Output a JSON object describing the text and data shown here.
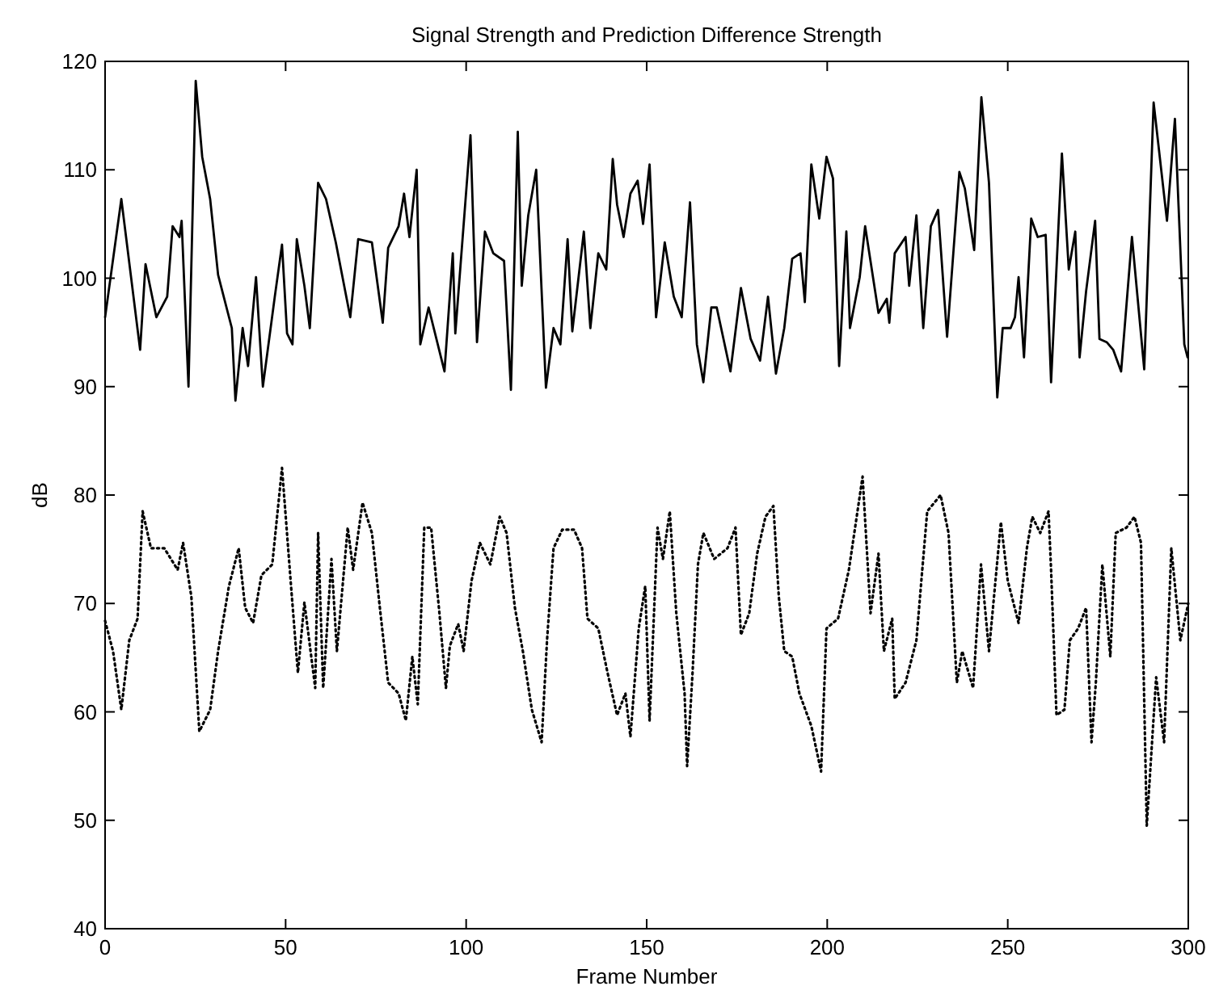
{
  "chart_data": {
    "type": "line",
    "title": "Signal Strength and Prediction Difference Strength",
    "xlabel": "Frame Number",
    "ylabel": "dB",
    "xlim": [
      0,
      300
    ],
    "ylim": [
      40,
      120
    ],
    "xticks": [
      0,
      50,
      100,
      150,
      200,
      250,
      300
    ],
    "yticks": [
      40,
      50,
      60,
      70,
      80,
      90,
      100,
      110,
      120
    ],
    "grid": false,
    "series": [
      {
        "color": "#000000",
        "line_style": "solid",
        "x": [
          0,
          4.5,
          9.7,
          11.2,
          14.2,
          17.2,
          18.7,
          20.6,
          21.2,
          23.1,
          25.1,
          26.9,
          29.1,
          31.3,
          35.1,
          36.1,
          38.1,
          39.6,
          41.8,
          43.7,
          47,
          49,
          50.4,
          51.9,
          53.1,
          55.2,
          56.7,
          59,
          61.2,
          63.9,
          67.9,
          70.1,
          73.9,
          76.9,
          78.4,
          81.3,
          82.8,
          84.3,
          86.3,
          87.3,
          89.6,
          94,
          96.3,
          97,
          101.2,
          103,
          105.2,
          107.5,
          110.5,
          112.4,
          114.3,
          115.4,
          117.2,
          119.4,
          122.1,
          124.2,
          126.1,
          128.1,
          129.4,
          132.6,
          134.4,
          136.6,
          138.8,
          140.6,
          141.8,
          143.6,
          145.5,
          147.5,
          149,
          150.8,
          152.6,
          155,
          157.5,
          159.7,
          162,
          163.9,
          165.7,
          167.9,
          169.4,
          173.2,
          176.1,
          178.8,
          181.4,
          183.6,
          185.8,
          188.1,
          190.3,
          192.6,
          193.8,
          195.6,
          197.8,
          199.8,
          201.6,
          203.3,
          205.3,
          206.3,
          209,
          210.5,
          214.2,
          216.5,
          217.2,
          218.7,
          221.7,
          222.7,
          224.7,
          226.6,
          228.7,
          230.7,
          233.2,
          236.6,
          238.1,
          240.7,
          242.7,
          244.8,
          247.1,
          248.6,
          250.8,
          252,
          253,
          254.5,
          256.5,
          258.3,
          260.5,
          262,
          265,
          266.9,
          268.7,
          269.9,
          271.7,
          274.2,
          275.4,
          277.4,
          279.2,
          281.4,
          284.4,
          287.8,
          290.4,
          294.1,
          296.3,
          298.9,
          299.8
        ],
        "values": [
          96.4,
          107.3,
          93.4,
          101.3,
          96.4,
          98.3,
          104.8,
          103.8,
          105.3,
          90,
          118.2,
          111.2,
          107.3,
          100.3,
          95.4,
          88.7,
          95.4,
          91.9,
          100.1,
          90,
          98.3,
          103.1,
          94.9,
          93.9,
          103.6,
          99.3,
          95.4,
          108.8,
          107.3,
          103.3,
          96.4,
          103.6,
          103.3,
          95.9,
          102.8,
          104.8,
          107.8,
          103.8,
          110,
          93.9,
          97.3,
          91.4,
          102.3,
          94.9,
          113.2,
          94.1,
          104.3,
          102.3,
          101.6,
          89.7,
          113.5,
          99.3,
          105.8,
          110,
          89.9,
          95.4,
          93.9,
          103.6,
          95.1,
          104.3,
          95.4,
          102.3,
          100.8,
          111,
          106.8,
          103.8,
          107.8,
          109,
          105,
          110.5,
          96.4,
          103.3,
          98.3,
          96.4,
          107,
          93.9,
          90.4,
          97.3,
          97.3,
          91.4,
          99.1,
          94.4,
          92.4,
          98.3,
          91.2,
          95.4,
          101.8,
          102.3,
          97.8,
          110.5,
          105.5,
          111.2,
          109.2,
          91.9,
          104.3,
          95.4,
          100.1,
          104.8,
          96.8,
          98.1,
          95.9,
          102.3,
          103.8,
          99.3,
          105.8,
          95.4,
          104.8,
          106.3,
          94.6,
          109.8,
          108.3,
          102.6,
          116.7,
          108.8,
          89,
          95.4,
          95.4,
          96.4,
          100.1,
          92.7,
          105.5,
          103.8,
          104,
          90.4,
          111.5,
          100.8,
          104.3,
          92.7,
          98.8,
          105.3,
          94.4,
          94.1,
          93.4,
          91.4,
          103.8,
          91.6,
          116.2,
          105.3,
          114.7,
          93.9,
          92.7
        ]
      },
      {
        "color": "#000000",
        "line_style": "dotted",
        "x": [
          0,
          2.2,
          4.5,
          6.7,
          9,
          10.4,
          12.7,
          16.4,
          20.1,
          21.6,
          23.9,
          26.1,
          29.1,
          31.3,
          34.3,
          37,
          38.8,
          41,
          43.3,
          46.3,
          49,
          51.5,
          53.4,
          55.2,
          58.2,
          59,
          60.4,
          62.7,
          64.2,
          67.2,
          68.7,
          71.3,
          73.9,
          76.1,
          78.4,
          81.3,
          83.3,
          85.1,
          86.6,
          88.4,
          90.3,
          92.6,
          94.4,
          95.5,
          97.8,
          99.3,
          101.5,
          103.8,
          106.7,
          109.3,
          111.2,
          113.5,
          115.7,
          118.2,
          120.9,
          122.4,
          124.2,
          126.6,
          129.9,
          132.1,
          133.6,
          136.6,
          139.1,
          141.8,
          144.1,
          145.5,
          147.8,
          149.6,
          150.8,
          153,
          154.5,
          156.4,
          158.2,
          160.5,
          161.2,
          162.7,
          164.2,
          165.7,
          168.7,
          172.4,
          174.6,
          176.1,
          178.4,
          180.6,
          182.9,
          185.1,
          186.6,
          188.1,
          190.3,
          192.3,
          195.6,
          198.3,
          199.8,
          203,
          206,
          209.8,
          212,
          214.2,
          215.7,
          218,
          218.7,
          221.7,
          224.7,
          226.2,
          227.7,
          231.4,
          233.6,
          235.9,
          237.4,
          240.4,
          242.6,
          244.8,
          248.1,
          250,
          253,
          255.3,
          256.8,
          259,
          261.3,
          262,
          263.5,
          265.7,
          267.2,
          269.5,
          271.7,
          273.2,
          274.4,
          276.2,
          278.4,
          279.9,
          282.9,
          285.1,
          286.9,
          288.5,
          291.1,
          293.3,
          295.3,
          297.8,
          300
        ],
        "values": [
          68.4,
          65.6,
          60.2,
          66.6,
          68.6,
          78.5,
          75.1,
          75.1,
          73.1,
          75.6,
          70.6,
          58.2,
          60.2,
          65.6,
          71.6,
          75.1,
          69.6,
          68.2,
          72.6,
          73.6,
          82.5,
          71.6,
          63.6,
          70.1,
          62.2,
          76.5,
          62.2,
          74.1,
          65.6,
          77,
          73.1,
          79.3,
          76.5,
          69.6,
          62.7,
          61.7,
          59.2,
          65.1,
          60.7,
          77,
          77,
          69.1,
          62.2,
          66.1,
          68.1,
          65.6,
          72.1,
          75.6,
          73.6,
          78,
          76.5,
          69.6,
          65.6,
          60.2,
          57.2,
          66.6,
          75.1,
          76.8,
          76.8,
          75.1,
          68.6,
          67.7,
          63.7,
          59.7,
          61.7,
          57.7,
          67.7,
          71.6,
          59.2,
          77,
          74.1,
          78.5,
          69.1,
          61.7,
          55,
          63.6,
          73.6,
          76.5,
          74.1,
          75.1,
          77,
          67.1,
          69.1,
          74.6,
          78,
          79,
          70.6,
          65.6,
          65.1,
          61.7,
          58.7,
          54.5,
          67.7,
          68.6,
          73.1,
          81.7,
          69.1,
          74.6,
          65.6,
          68.6,
          61.2,
          62.7,
          66.6,
          72.6,
          78.5,
          80,
          76.5,
          62.7,
          65.6,
          62.2,
          73.6,
          65.6,
          77.5,
          72.1,
          68.2,
          75.1,
          78,
          76.5,
          78.5,
          73.1,
          59.7,
          60.2,
          66.6,
          67.7,
          69.6,
          57.2,
          62.7,
          73.6,
          65.1,
          76.5,
          77,
          78,
          75.6,
          49.5,
          63.2,
          57.2,
          75.1,
          66.6,
          70
        ]
      }
    ]
  }
}
